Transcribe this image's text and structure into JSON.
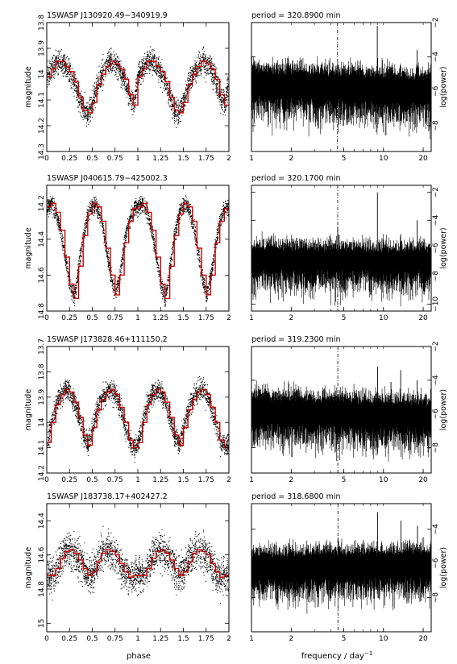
{
  "figure": {
    "xlabel_phase": "phase",
    "xlabel_freq_prefix": "frequency / day",
    "xlabel_freq_sup": "−1",
    "ylabel_mag": "magnitude",
    "ylabel_power": "log(power)"
  },
  "chart_data": [
    {
      "type": "scatter",
      "title": "1SWASP J130920.49−340919.9",
      "xlabel": "phase",
      "ylabel": "magnitude",
      "xlim": [
        0,
        2
      ],
      "ylim": [
        14.3,
        13.8
      ],
      "y_inverted": true,
      "xticks": [
        "0",
        "0.25",
        "0.5",
        "0.75",
        "1",
        "1.25",
        "1.5",
        "1.75",
        "2"
      ],
      "yticks": [
        "13.8",
        "13.9",
        "14",
        "14.1",
        "14.2",
        "14.3"
      ],
      "series": [
        {
          "color": "#cc0000",
          "x": [
            0,
            0.05,
            0.1,
            0.15,
            0.2,
            0.25,
            0.3,
            0.35,
            0.4,
            0.45,
            0.5,
            0.55,
            0.6,
            0.65,
            0.7,
            0.75,
            0.8,
            0.85,
            0.9,
            0.95,
            1
          ],
          "y": [
            14.01,
            13.98,
            13.95,
            13.95,
            13.97,
            13.99,
            14.03,
            14.09,
            14.14,
            14.15,
            14.11,
            14.04,
            14.0,
            13.97,
            13.95,
            13.96,
            13.98,
            14.02,
            14.08,
            14.12,
            14.01
          ]
        }
      ],
      "scatter_spread": 0.05,
      "point_color": "#000000"
    },
    {
      "type": "line",
      "title": "period = 320.8900 min",
      "xlabel": "frequency / day−1",
      "ylabel": "log(power)",
      "xscale": "log",
      "xlim": [
        1,
        23
      ],
      "ylim": [
        -9.5,
        -2
      ],
      "xticks": [
        "1",
        "2",
        "5",
        "10",
        "20"
      ],
      "yticks": [
        "−2",
        "−4",
        "−6",
        "−8"
      ],
      "marker_freq": 4.49,
      "marker_style": "dash-dot",
      "noise": {
        "center_low": -5.6,
        "center_high": -6.0,
        "spread": 1.4
      },
      "peaks": [
        {
          "x": 8.98,
          "y": -2.2
        },
        {
          "x": 17.96,
          "y": -3.6
        },
        {
          "x": 13.47,
          "y": -4.5
        }
      ]
    },
    {
      "type": "scatter",
      "title": "1SWASP J040615.79−425002.3",
      "xlabel": "phase",
      "ylabel": "magnitude",
      "xlim": [
        0,
        2
      ],
      "ylim": [
        14.8,
        14.1
      ],
      "y_inverted": true,
      "xticks": [
        "0",
        "0.25",
        "0.5",
        "0.75",
        "1",
        "1.25",
        "1.5",
        "1.75",
        "2"
      ],
      "yticks": [
        "14.2",
        "14.4",
        "14.6",
        "14.8"
      ],
      "series": [
        {
          "color": "#cc0000",
          "x": [
            0,
            0.05,
            0.1,
            0.15,
            0.2,
            0.25,
            0.3,
            0.35,
            0.4,
            0.45,
            0.5,
            0.55,
            0.6,
            0.65,
            0.7,
            0.75,
            0.8,
            0.85,
            0.9,
            0.95,
            1
          ],
          "y": [
            14.22,
            14.2,
            14.25,
            14.35,
            14.5,
            14.65,
            14.73,
            14.55,
            14.38,
            14.26,
            14.2,
            14.22,
            14.3,
            14.45,
            14.6,
            14.71,
            14.6,
            14.42,
            14.3,
            14.23,
            14.22
          ]
        }
      ],
      "scatter_spread": 0.05,
      "point_color": "#000000"
    },
    {
      "type": "line",
      "title": "period = 320.1700 min",
      "xlabel": "frequency / day−1",
      "ylabel": "log(power)",
      "xscale": "log",
      "xlim": [
        1,
        23
      ],
      "ylim": [
        -10.5,
        -1.5
      ],
      "xticks": [
        "1",
        "2",
        "5",
        "10",
        "20"
      ],
      "yticks": [
        "−2",
        "−4",
        "−6",
        "−8",
        "−10"
      ],
      "marker_freq": 4.5,
      "marker_style": "dash-dot",
      "noise": {
        "center_low": -6.8,
        "center_high": -7.0,
        "spread": 1.6
      },
      "peaks": [
        {
          "x": 9.0,
          "y": -2.0
        },
        {
          "x": 4.5,
          "y": -4.5
        },
        {
          "x": 18.0,
          "y": -4.0
        },
        {
          "x": 13.5,
          "y": -5.0
        }
      ]
    },
    {
      "type": "scatter",
      "title": "1SWASP J173828.46+111150.2",
      "xlabel": "phase",
      "ylabel": "magnitude",
      "xlim": [
        0,
        2
      ],
      "ylim": [
        14.2,
        13.7
      ],
      "y_inverted": true,
      "xticks": [
        "0",
        "0.25",
        "0.5",
        "0.75",
        "1",
        "1.25",
        "1.5",
        "1.75",
        "2"
      ],
      "yticks": [
        "13.7",
        "13.8",
        "13.9",
        "14",
        "14.1",
        "14.2"
      ],
      "series": [
        {
          "color": "#cc0000",
          "x": [
            0,
            0.05,
            0.1,
            0.15,
            0.2,
            0.25,
            0.3,
            0.35,
            0.4,
            0.45,
            0.5,
            0.55,
            0.6,
            0.65,
            0.7,
            0.75,
            0.8,
            0.85,
            0.9,
            0.95,
            1
          ],
          "y": [
            14.08,
            14.0,
            13.93,
            13.89,
            13.87,
            13.88,
            13.92,
            13.98,
            14.05,
            14.09,
            14.02,
            13.95,
            13.91,
            13.88,
            13.87,
            13.89,
            13.94,
            14.0,
            14.07,
            14.1,
            14.08
          ]
        }
      ],
      "scatter_spread": 0.045,
      "point_color": "#000000"
    },
    {
      "type": "line",
      "title": "period = 319.2300 min",
      "xlabel": "frequency / day−1",
      "ylabel": "log(power)",
      "xscale": "log",
      "xlim": [
        1,
        23
      ],
      "ylim": [
        -9.5,
        -2
      ],
      "xticks": [
        "1",
        "2",
        "5",
        "10",
        "20"
      ],
      "yticks": [
        "−2",
        "−4",
        "−6",
        "−8"
      ],
      "marker_freq": 4.51,
      "marker_style": "dash-dot",
      "noise": {
        "center_low": -5.8,
        "center_high": -6.2,
        "spread": 1.4
      },
      "peaks": [
        {
          "x": 9.02,
          "y": -3.2
        },
        {
          "x": 13.5,
          "y": -3.4
        },
        {
          "x": 11.4,
          "y": -4.1
        },
        {
          "x": 18.0,
          "y": -4.0
        },
        {
          "x": 4.51,
          "y": -4.8
        }
      ]
    },
    {
      "type": "scatter",
      "title": "1SWASP J183738.17+402427.2",
      "xlabel": "phase",
      "ylabel": "magnitude",
      "xlim": [
        0,
        2
      ],
      "ylim": [
        15.05,
        14.3
      ],
      "y_inverted": true,
      "xticks": [
        "0",
        "0.25",
        "0.5",
        "0.75",
        "1",
        "1.25",
        "1.5",
        "1.75",
        "2"
      ],
      "yticks": [
        "14.4",
        "14.6",
        "14.8",
        "15"
      ],
      "series": [
        {
          "color": "#cc0000",
          "x": [
            0,
            0.05,
            0.1,
            0.15,
            0.2,
            0.25,
            0.3,
            0.35,
            0.4,
            0.45,
            0.5,
            0.55,
            0.6,
            0.65,
            0.7,
            0.75,
            0.8,
            0.85,
            0.9,
            0.95,
            1
          ],
          "y": [
            14.72,
            14.72,
            14.68,
            14.62,
            14.58,
            14.57,
            14.59,
            14.63,
            14.68,
            14.72,
            14.7,
            14.64,
            14.59,
            14.57,
            14.58,
            14.6,
            14.65,
            14.7,
            14.73,
            14.72,
            14.72
          ]
        }
      ],
      "scatter_spread": 0.11,
      "point_color": "#000000"
    },
    {
      "type": "line",
      "title": "period = 318.6800 min",
      "xlabel": "frequency / day−1",
      "ylabel": "log(power)",
      "xscale": "log",
      "xlim": [
        1,
        23
      ],
      "ylim": [
        -10,
        -2.5
      ],
      "xticks": [
        "1",
        "2",
        "5",
        "10",
        "20"
      ],
      "yticks": [
        "−4",
        "−6",
        "−8"
      ],
      "marker_freq": 4.52,
      "marker_style": "dash-dot",
      "noise": {
        "center_low": -6.3,
        "center_high": -6.1,
        "spread": 1.3
      },
      "peaks": [
        {
          "x": 9.04,
          "y": -3.0
        },
        {
          "x": 13.56,
          "y": -3.5
        },
        {
          "x": 18.1,
          "y": -3.8
        },
        {
          "x": 4.52,
          "y": -4.5
        }
      ]
    }
  ]
}
